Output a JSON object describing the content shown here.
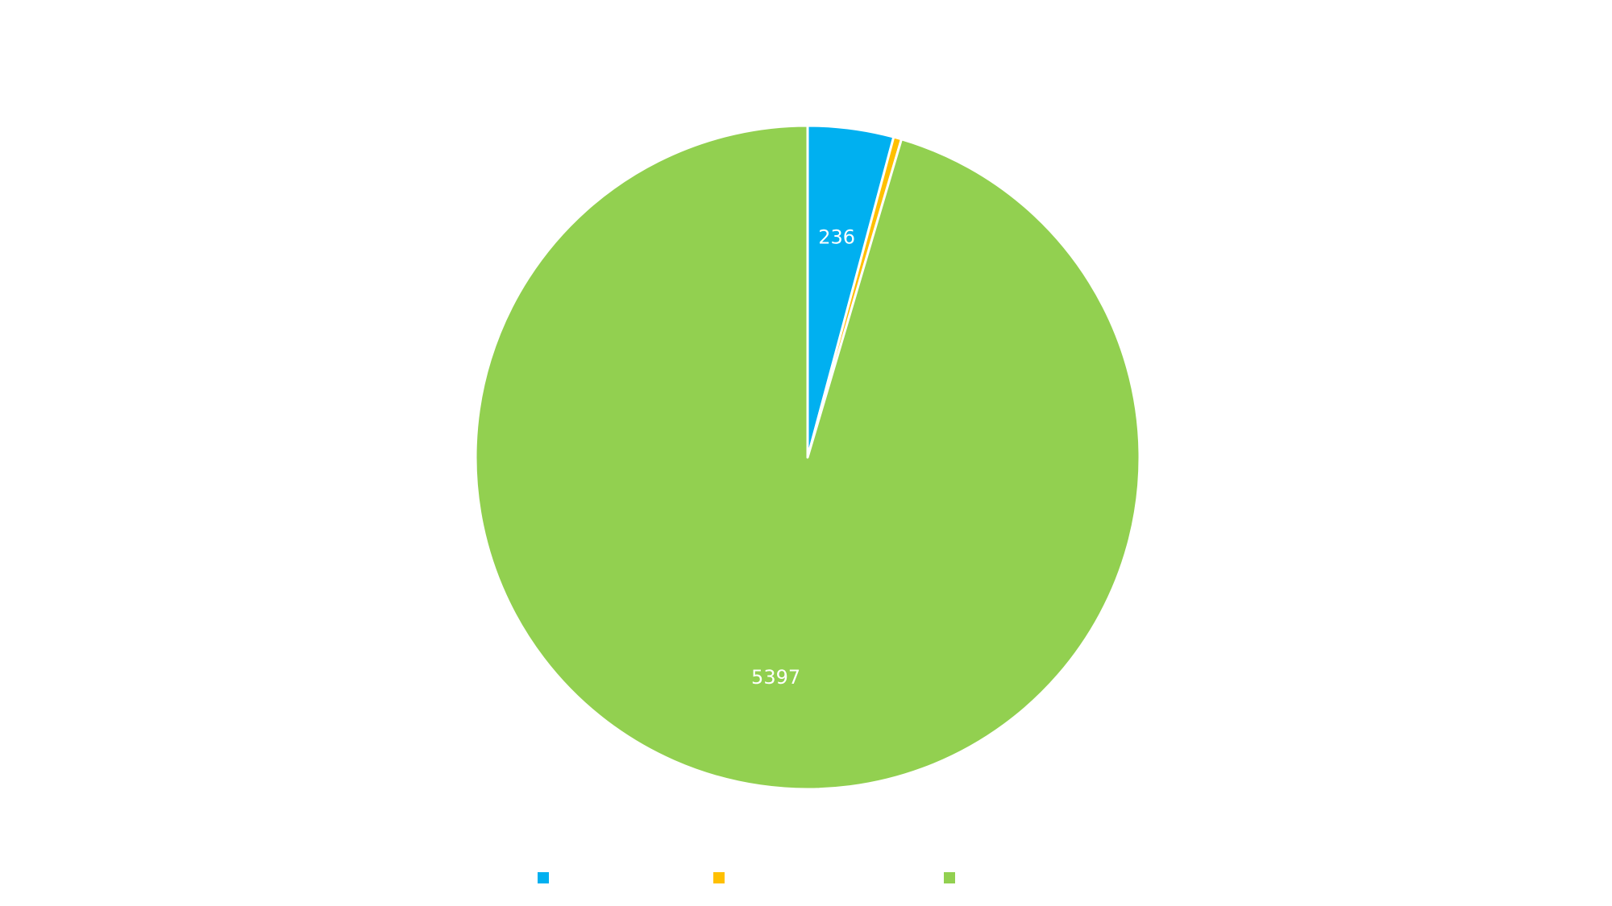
{
  "chart_data": {
    "type": "pie",
    "title": "",
    "start_angle_deg": 0,
    "direction": "clockwise",
    "slices": [
      {
        "name": "",
        "value": 236,
        "color": "#00B0F0",
        "label": "236"
      },
      {
        "name": "",
        "value": 22,
        "color": "#FFC000",
        "label": ""
      },
      {
        "name": "",
        "value": 5397,
        "color": "#92D050",
        "label": "5397"
      }
    ],
    "legend": {
      "placement": "bottom",
      "visible": true
    }
  }
}
